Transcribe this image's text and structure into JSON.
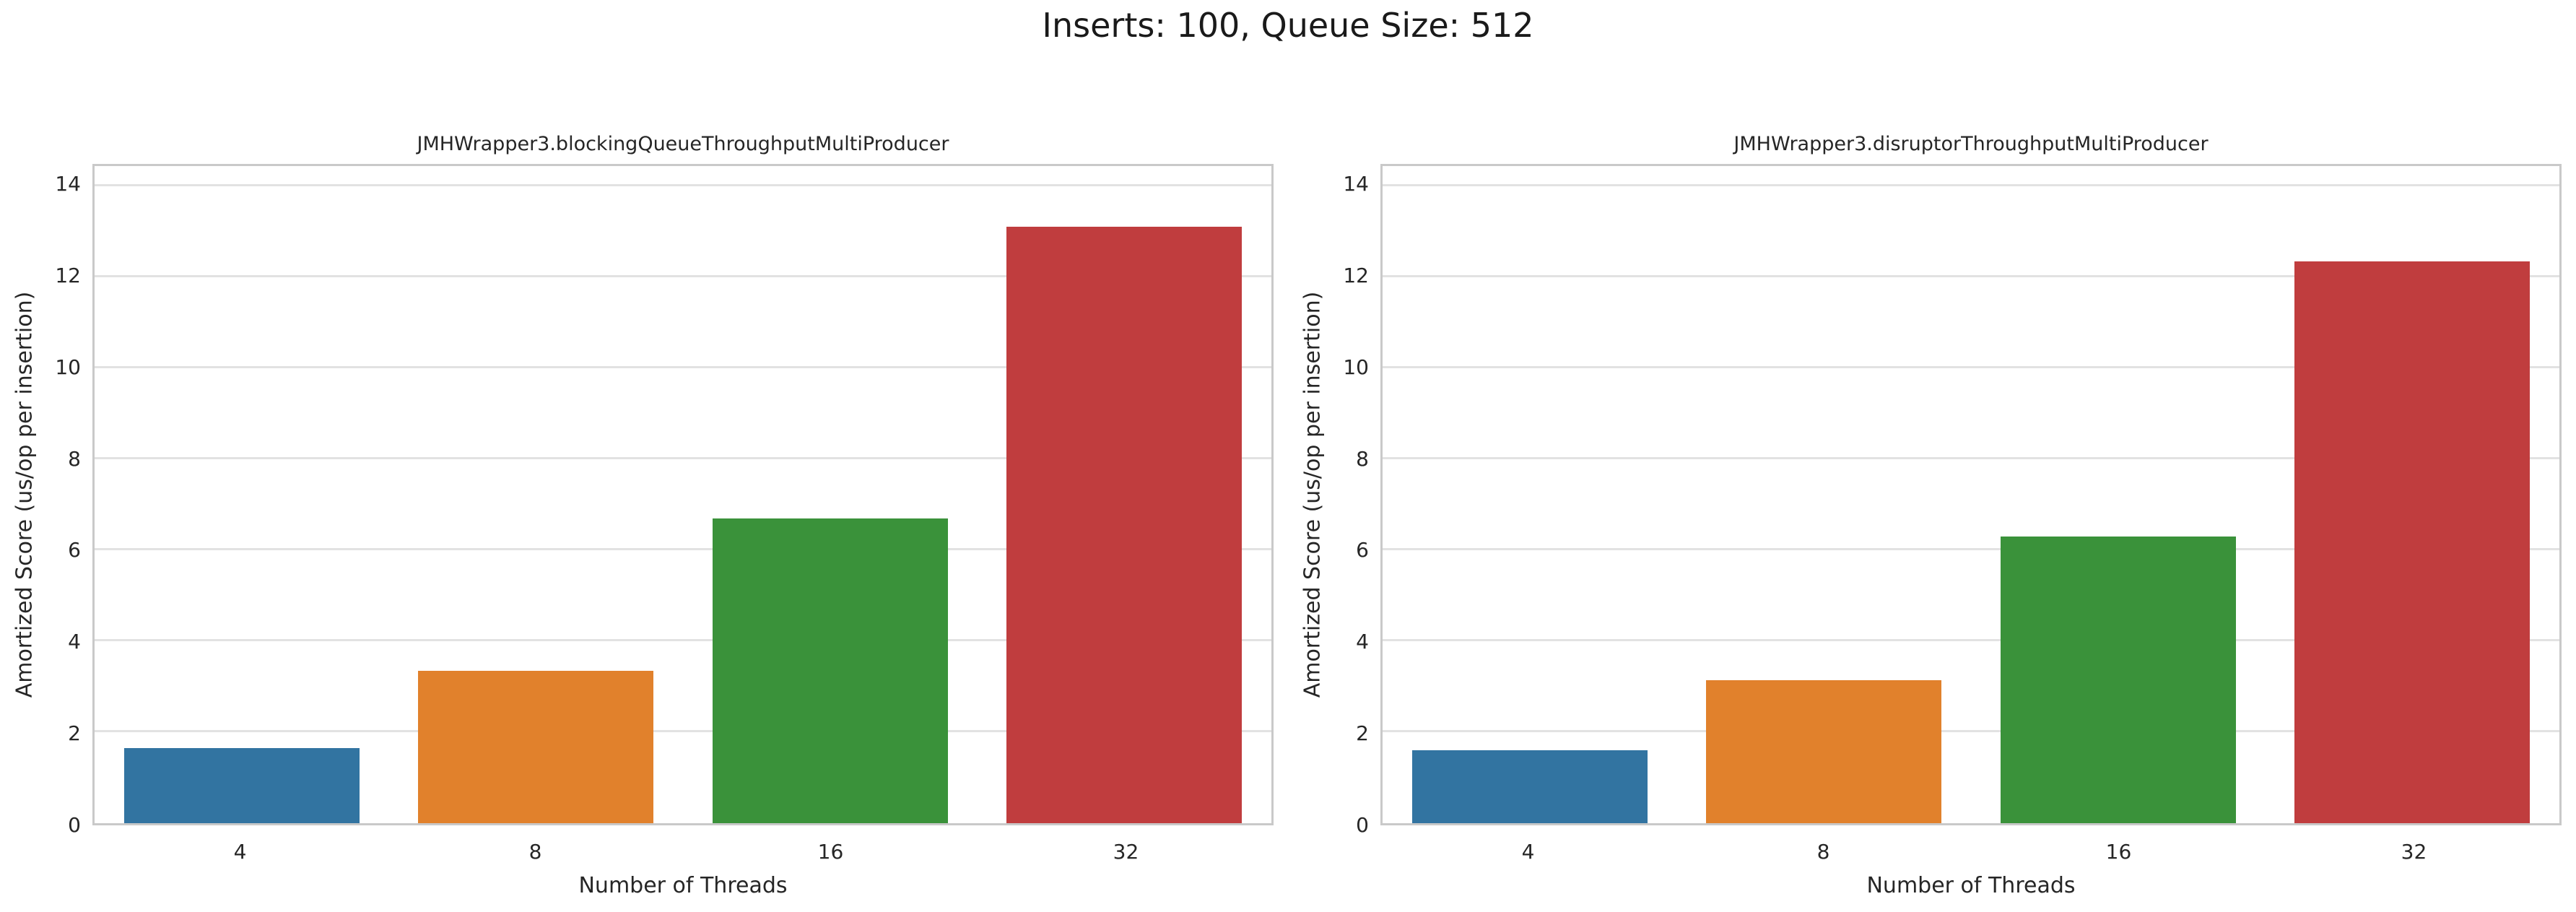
{
  "figure": {
    "title": "Inserts: 100, Queue Size: 512",
    "background_color": "#ffffff",
    "grid_color": "#e2e2e2",
    "spine_color": "#c9c9c9",
    "text_color": "#262626"
  },
  "chart_data": [
    {
      "type": "bar",
      "title": "JMHWrapper3.blockingQueueThroughputMultiProducer",
      "categories": [
        "4",
        "8",
        "16",
        "32"
      ],
      "values": [
        1.65,
        3.35,
        6.7,
        13.1
      ],
      "xlabel": "Number of Threads",
      "ylabel": "Amortized Score (us/op per insertion)",
      "ylim": [
        0,
        14.44
      ],
      "yticks": [
        0,
        2,
        4,
        6,
        8,
        10,
        12,
        14
      ],
      "bar_colors": [
        "#3274a1",
        "#e1812c",
        "#3a923a",
        "#c03d3e"
      ],
      "bar_width_fraction": 0.8,
      "grid": "horizontal",
      "legend": "none"
    },
    {
      "type": "bar",
      "title": "JMHWrapper3.disruptorThroughputMultiProducer",
      "categories": [
        "4",
        "8",
        "16",
        "32"
      ],
      "values": [
        1.6,
        3.15,
        6.3,
        12.35
      ],
      "xlabel": "Number of Threads",
      "ylabel": "Amortized Score (us/op per insertion)",
      "ylim": [
        0,
        14.44
      ],
      "yticks": [
        0,
        2,
        4,
        6,
        8,
        10,
        12,
        14
      ],
      "bar_colors": [
        "#3274a1",
        "#e1812c",
        "#3a923a",
        "#c03d3e"
      ],
      "bar_width_fraction": 0.8,
      "grid": "horizontal",
      "legend": "none"
    }
  ]
}
